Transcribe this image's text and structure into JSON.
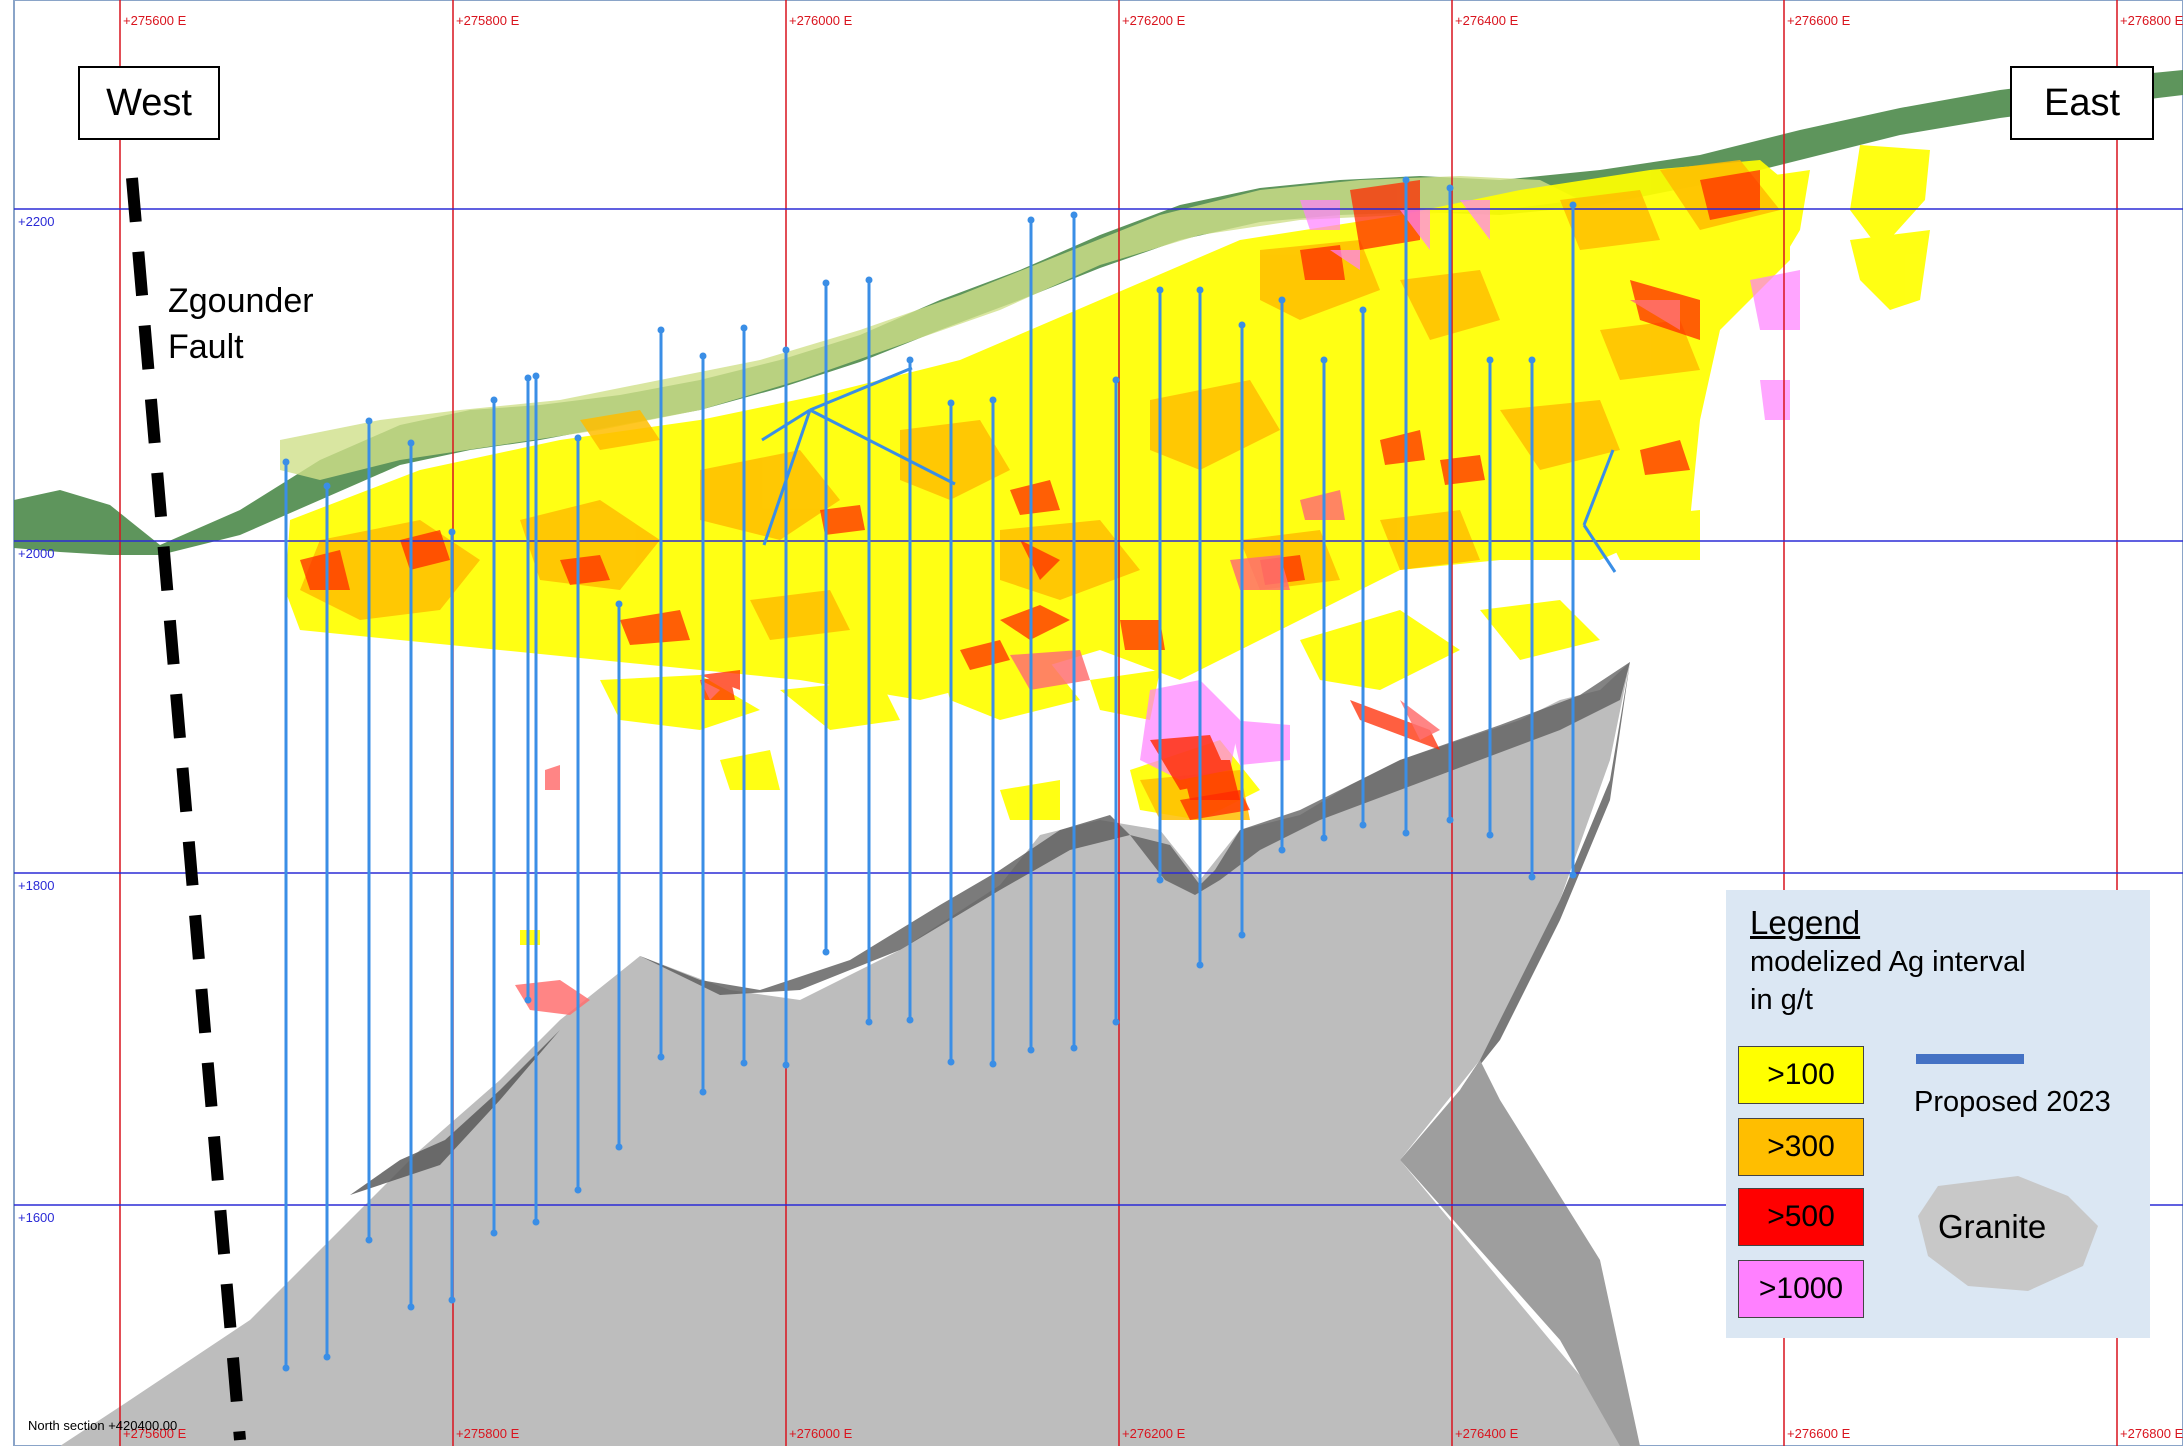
{
  "grid": {
    "easting_top": [
      "+275600 E",
      "+275800 E",
      "+276000 E",
      "+276200 E",
      "+276400 E",
      "+276600 E",
      "+276800 E"
    ],
    "easting_bottom": [
      "+275600 E",
      "+275800 E",
      "+276000 E",
      "+276200 E",
      "+276400 E",
      "+276600 E",
      "+276800 E"
    ],
    "elevation": [
      "+2200",
      "+2000",
      "+1800",
      "+1600"
    ],
    "easting_line_color": "#d9141e",
    "elevation_line_color": "#2b2bd6"
  },
  "labels": {
    "west": "West",
    "east": "East",
    "fault_line1": "Zgounder",
    "fault_line2": "Fault",
    "north_section": "North section +420400.00"
  },
  "legend": {
    "title": "Legend",
    "subtitle_line1": "modelized Ag interval",
    "subtitle_line2": "in g/t",
    "grades": [
      {
        "label": ">100",
        "color": "#ffff00"
      },
      {
        "label": ">300",
        "color": "#ffbe00"
      },
      {
        "label": ">500",
        "color": "#ff0000"
      },
      {
        "label": ">1000",
        "color": "#ff80ff"
      }
    ],
    "proposed_label": "Proposed 2023",
    "proposed_color": "#4472c4",
    "granite_label": "Granite",
    "granite_color": "#c8c8c8"
  },
  "colors": {
    "topography": "#4d8a4a",
    "granite": "#bdbdbd",
    "granite_dark": "#5a5a5a",
    "drillhole": "#3a8ee6",
    "fault": "#000000"
  }
}
